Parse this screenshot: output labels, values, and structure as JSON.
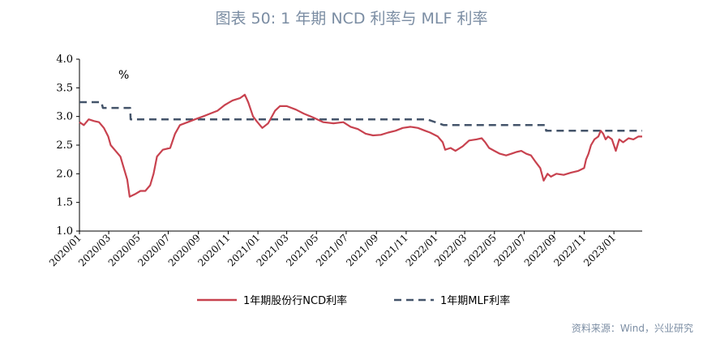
{
  "title": "图表 50: 1 年期 NCD 利率与 MLF 利率",
  "source": "资料来源：Wind，兴业研究",
  "chart_data": {
    "type": "line",
    "unit": "%",
    "ylim": [
      1.0,
      4.0
    ],
    "yticks": [
      "4.0",
      "3.5",
      "3.0",
      "2.5",
      "2.0",
      "1.5",
      "1.0"
    ],
    "xlim": [
      "2020-01-01",
      "2023-02-28"
    ],
    "xticks": [
      "2020/01",
      "2020/03",
      "2020/05",
      "2020/07",
      "2020/09",
      "2020/11",
      "2021/01",
      "2021/03",
      "2021/05",
      "2021/07",
      "2021/09",
      "2021/11",
      "2022/01",
      "2022/03",
      "2022/05",
      "2022/07",
      "2022/09",
      "2022/11",
      "2023/01"
    ],
    "xtick_dates": [
      "2020-01-01",
      "2020-03-01",
      "2020-05-01",
      "2020-07-01",
      "2020-09-01",
      "2020-11-01",
      "2021-01-01",
      "2021-03-01",
      "2021-05-01",
      "2021-07-01",
      "2021-09-01",
      "2021-11-01",
      "2022-01-01",
      "2022-03-01",
      "2022-05-01",
      "2022-07-01",
      "2022-09-01",
      "2022-11-01",
      "2023-01-01"
    ],
    "legend_position": "bottom",
    "grid": false,
    "series": [
      {
        "name": "1年期股份行NCD利率",
        "color": "#c8424f",
        "style": "solid",
        "points": [
          [
            "2020-01-01",
            2.9
          ],
          [
            "2020-01-10",
            2.85
          ],
          [
            "2020-01-20",
            2.95
          ],
          [
            "2020-01-31",
            2.92
          ],
          [
            "2020-02-10",
            2.9
          ],
          [
            "2020-02-20",
            2.8
          ],
          [
            "2020-02-29",
            2.65
          ],
          [
            "2020-03-05",
            2.5
          ],
          [
            "2020-03-15",
            2.4
          ],
          [
            "2020-03-25",
            2.3
          ],
          [
            "2020-04-01",
            2.1
          ],
          [
            "2020-04-08",
            1.9
          ],
          [
            "2020-04-13",
            1.6
          ],
          [
            "2020-04-25",
            1.65
          ],
          [
            "2020-05-05",
            1.7
          ],
          [
            "2020-05-15",
            1.7
          ],
          [
            "2020-05-25",
            1.8
          ],
          [
            "2020-06-01",
            2.0
          ],
          [
            "2020-06-08",
            2.3
          ],
          [
            "2020-06-20",
            2.42
          ],
          [
            "2020-07-05",
            2.45
          ],
          [
            "2020-07-15",
            2.7
          ],
          [
            "2020-07-25",
            2.85
          ],
          [
            "2020-08-10",
            2.9
          ],
          [
            "2020-08-25",
            2.95
          ],
          [
            "2020-09-10",
            3.0
          ],
          [
            "2020-09-25",
            3.05
          ],
          [
            "2020-10-10",
            3.1
          ],
          [
            "2020-10-25",
            3.2
          ],
          [
            "2020-11-10",
            3.28
          ],
          [
            "2020-11-25",
            3.32
          ],
          [
            "2020-12-05",
            3.38
          ],
          [
            "2020-12-12",
            3.25
          ],
          [
            "2020-12-22",
            3.0
          ],
          [
            "2020-12-31",
            2.9
          ],
          [
            "2021-01-10",
            2.8
          ],
          [
            "2021-01-22",
            2.88
          ],
          [
            "2021-02-05",
            3.1
          ],
          [
            "2021-02-15",
            3.18
          ],
          [
            "2021-03-01",
            3.18
          ],
          [
            "2021-03-20",
            3.12
          ],
          [
            "2021-04-05",
            3.05
          ],
          [
            "2021-04-25",
            2.98
          ],
          [
            "2021-05-15",
            2.9
          ],
          [
            "2021-06-05",
            2.88
          ],
          [
            "2021-06-25",
            2.9
          ],
          [
            "2021-07-10",
            2.82
          ],
          [
            "2021-07-25",
            2.78
          ],
          [
            "2021-08-10",
            2.7
          ],
          [
            "2021-08-25",
            2.67
          ],
          [
            "2021-09-10",
            2.68
          ],
          [
            "2021-09-25",
            2.72
          ],
          [
            "2021-10-10",
            2.75
          ],
          [
            "2021-10-25",
            2.8
          ],
          [
            "2021-11-10",
            2.82
          ],
          [
            "2021-11-25",
            2.8
          ],
          [
            "2021-12-10",
            2.75
          ],
          [
            "2021-12-20",
            2.72
          ],
          [
            "2022-01-05",
            2.65
          ],
          [
            "2022-01-15",
            2.55
          ],
          [
            "2022-01-20",
            2.42
          ],
          [
            "2022-01-31",
            2.45
          ],
          [
            "2022-02-10",
            2.4
          ],
          [
            "2022-02-25",
            2.48
          ],
          [
            "2022-03-10",
            2.58
          ],
          [
            "2022-03-25",
            2.6
          ],
          [
            "2022-04-05",
            2.62
          ],
          [
            "2022-04-12",
            2.55
          ],
          [
            "2022-04-20",
            2.45
          ],
          [
            "2022-05-01",
            2.4
          ],
          [
            "2022-05-12",
            2.35
          ],
          [
            "2022-05-25",
            2.32
          ],
          [
            "2022-06-05",
            2.35
          ],
          [
            "2022-06-15",
            2.38
          ],
          [
            "2022-06-25",
            2.4
          ],
          [
            "2022-07-05",
            2.35
          ],
          [
            "2022-07-15",
            2.32
          ],
          [
            "2022-07-25",
            2.2
          ],
          [
            "2022-08-03",
            2.1
          ],
          [
            "2022-08-10",
            1.88
          ],
          [
            "2022-08-18",
            2.0
          ],
          [
            "2022-08-25",
            1.95
          ],
          [
            "2022-09-05",
            2.0
          ],
          [
            "2022-09-20",
            1.98
          ],
          [
            "2022-10-05",
            2.02
          ],
          [
            "2022-10-20",
            2.05
          ],
          [
            "2022-11-01",
            2.1
          ],
          [
            "2022-11-05",
            2.25
          ],
          [
            "2022-11-10",
            2.35
          ],
          [
            "2022-11-15",
            2.5
          ],
          [
            "2022-11-22",
            2.6
          ],
          [
            "2022-11-30",
            2.65
          ],
          [
            "2022-12-05",
            2.75
          ],
          [
            "2022-12-10",
            2.7
          ],
          [
            "2022-12-15",
            2.6
          ],
          [
            "2022-12-20",
            2.65
          ],
          [
            "2022-12-28",
            2.6
          ],
          [
            "2023-01-05",
            2.4
          ],
          [
            "2023-01-12",
            2.6
          ],
          [
            "2023-01-20",
            2.55
          ],
          [
            "2023-01-31",
            2.62
          ],
          [
            "2023-02-10",
            2.6
          ],
          [
            "2023-02-20",
            2.65
          ],
          [
            "2023-02-28",
            2.65
          ]
        ]
      },
      {
        "name": "1年期MLF利率",
        "color": "#44546a",
        "style": "dashed",
        "points": [
          [
            "2020-01-01",
            3.25
          ],
          [
            "2020-02-15",
            3.25
          ],
          [
            "2020-02-18",
            3.15
          ],
          [
            "2020-04-14",
            3.15
          ],
          [
            "2020-04-15",
            2.95
          ],
          [
            "2021-12-14",
            2.95
          ],
          [
            "2022-01-17",
            2.85
          ],
          [
            "2022-08-14",
            2.85
          ],
          [
            "2022-08-15",
            2.75
          ],
          [
            "2023-02-28",
            2.75
          ]
        ]
      }
    ]
  }
}
